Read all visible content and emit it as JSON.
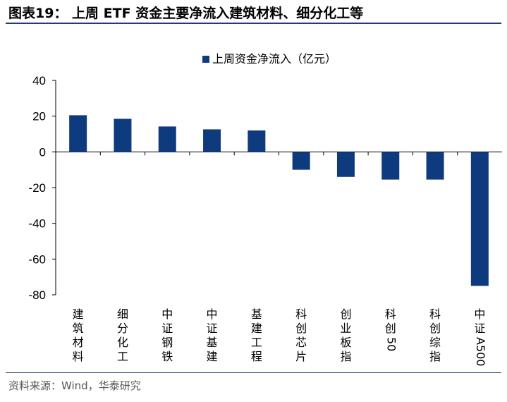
{
  "header": {
    "title": "图表19：  上周 ETF 资金主要净流入建筑材料、细分化工等"
  },
  "footer": {
    "source": "资料来源：Wind，华泰研究"
  },
  "colors": {
    "bar": "#0e3b7e",
    "rule": "#1f3c73"
  },
  "chart_data": {
    "type": "bar",
    "categories": [
      "建筑材料",
      "细分化工",
      "中证钢铁",
      "中证基建",
      "基建工程",
      "科创芯片",
      "创业板指",
      "科创50",
      "科创综指",
      "中证A500"
    ],
    "series": [
      {
        "name": "上周资金净流入（亿元）",
        "values": [
          20.5,
          18.5,
          14.2,
          12.6,
          12.0,
          -10.0,
          -14.0,
          -15.5,
          -15.5,
          -75.0
        ]
      }
    ],
    "ylim": [
      -80,
      40
    ],
    "yticks": [
      40,
      20,
      0,
      -20,
      -40,
      -60,
      -80
    ],
    "legend_position": "top-center",
    "grid": false
  }
}
